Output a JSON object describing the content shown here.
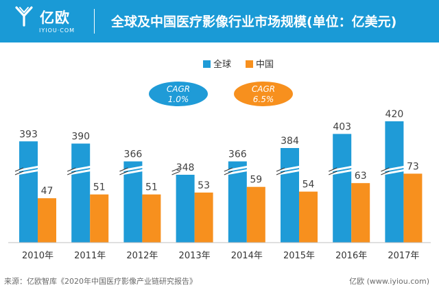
{
  "header": {
    "logo_text": "亿欧",
    "logo_sub": "IYIOU·COM",
    "title": "全球及中国医疗影像行业市场规模(单位：亿美元)"
  },
  "colors": {
    "global": "#1f9bd7",
    "china": "#f7901e",
    "header_bg": "#1a9ad6"
  },
  "chart_data": {
    "type": "bar",
    "title": "全球及中国医疗影像行业市场规模(单位：亿美元)",
    "categories": [
      "2010年",
      "2011年",
      "2012年",
      "2013年",
      "2014年",
      "2015年",
      "2016年",
      "2017年"
    ],
    "series": [
      {
        "name": "全球",
        "values": [
          393,
          390,
          366,
          348,
          366,
          384,
          403,
          420
        ]
      },
      {
        "name": "中国",
        "values": [
          47,
          51,
          51,
          53,
          59,
          54,
          63,
          73
        ]
      }
    ],
    "axis_break": true,
    "badges": [
      {
        "series": "全球",
        "line1": "CAGR",
        "line2": "1.0%"
      },
      {
        "series": "中国",
        "line1": "CAGR",
        "line2": "6.5%"
      }
    ]
  },
  "footer": {
    "source": "来源：亿欧智库《2020年中国医疗影像产业链研究报告》",
    "brand": "亿欧 (www.iyiou.com)"
  }
}
